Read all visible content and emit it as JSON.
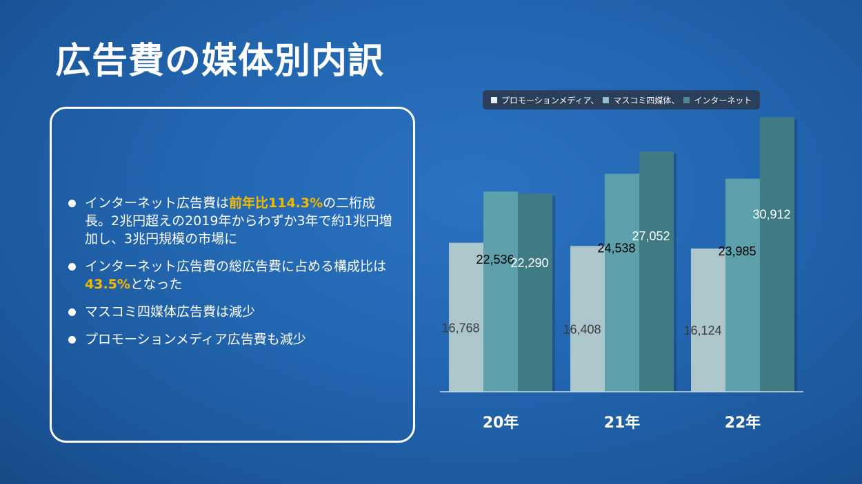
{
  "slide": {
    "title": "広告費の媒体別内訳"
  },
  "bullets": [
    {
      "parts": [
        {
          "text": "インターネット広告費は",
          "hl": false
        },
        {
          "text": "前年比114.3%",
          "hl": true
        },
        {
          "text": "の二桁成長。2兆円超えの2019年からわずか3年で約1兆円増加し、3兆円規模の市場に",
          "hl": false
        }
      ]
    },
    {
      "parts": [
        {
          "text": "インターネット広告費の総広告費に占める構成比は",
          "hl": false
        },
        {
          "text": "43.5%",
          "hl": true
        },
        {
          "text": "となった",
          "hl": false
        }
      ]
    },
    {
      "parts": [
        {
          "text": "マスコミ四媒体広告費は減少",
          "hl": false
        }
      ]
    },
    {
      "parts": [
        {
          "text": "プロモーションメディア広告費も減少",
          "hl": false
        }
      ]
    }
  ],
  "legend": [
    {
      "label": "プロモーションメディア、",
      "color": "#e8eef2"
    },
    {
      "label": "マスコミ四媒体、",
      "color": "#8fc3c9"
    },
    {
      "label": "インターネット",
      "color": "#4d8a8f"
    }
  ],
  "colors": {
    "accent_highlight": "#f5b800",
    "promotion": "#adc6cc",
    "masscomm": "#5ba0ab",
    "internet": "#407a82"
  },
  "chart_data": {
    "type": "bar",
    "categories": [
      "20年",
      "21年",
      "22年"
    ],
    "series": [
      {
        "name": "プロモーションメディア",
        "values": [
          16768,
          16408,
          16124
        ]
      },
      {
        "name": "マスコミ四媒体",
        "values": [
          22536,
          24538,
          23985
        ]
      },
      {
        "name": "インターネット",
        "values": [
          22290,
          27052,
          30912
        ]
      }
    ],
    "value_labels": [
      [
        "16,768",
        "22,536",
        "22,290"
      ],
      [
        "16,408",
        "24,538",
        "27,052"
      ],
      [
        "16,124",
        "23,985",
        "30,912"
      ]
    ],
    "ylim": [
      0,
      31000
    ],
    "grid": false,
    "legend_position": "top"
  }
}
